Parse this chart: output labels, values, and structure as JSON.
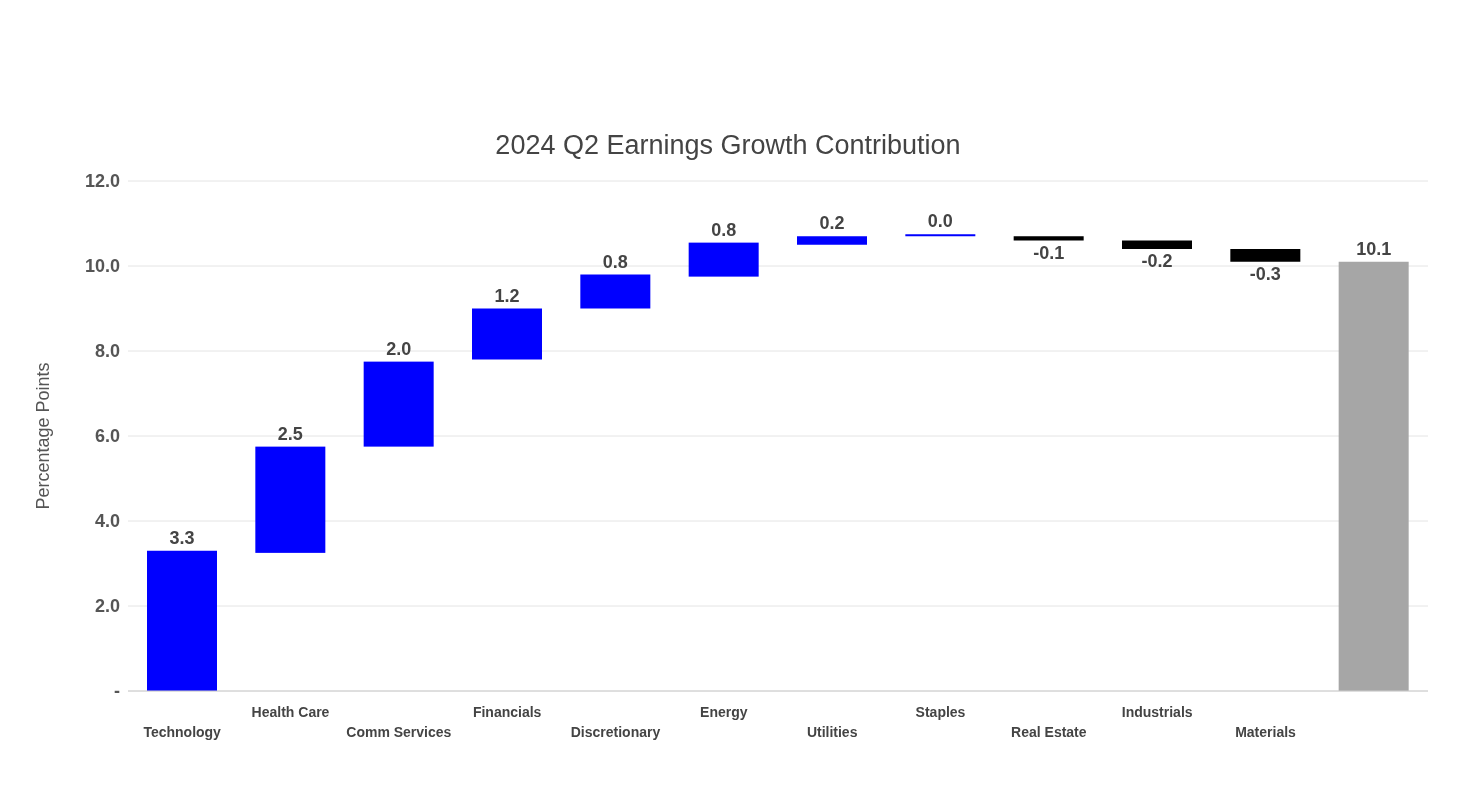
{
  "chart_data": {
    "type": "bar",
    "title": "2024 Q2 Earnings Growth Contribution",
    "ylabel": "Percentage Points",
    "categories": [
      "Technology",
      "Health Care",
      "Comm Services",
      "Financials",
      "Discretionary",
      "Energy",
      "Utilities",
      "Staples",
      "Real Estate",
      "Industrials",
      "Materials",
      null
    ],
    "base": [
      0,
      3.25,
      5.75,
      7.8,
      9.0,
      9.75,
      10.5,
      10.7,
      10.7,
      10.6,
      10.4,
      0
    ],
    "values": [
      3.3,
      2.5,
      2.0,
      1.2,
      0.8,
      0.8,
      0.2,
      0.0,
      -0.1,
      -0.2,
      -0.3,
      10.1
    ],
    "value_labels": [
      "3.3",
      "2.5",
      "2.0",
      "1.2",
      "0.8",
      "0.8",
      "0.2",
      "0.0",
      "-0.1",
      "-0.2",
      "-0.3",
      "10.1"
    ],
    "colors": [
      "#0000ff",
      "#0000ff",
      "#0000ff",
      "#0000ff",
      "#0000ff",
      "#0000ff",
      "#0000ff",
      "#0000ff",
      "#000000",
      "#000000",
      "#000000",
      "#a6a6a6"
    ],
    "ylim": [
      0,
      12
    ],
    "yticks": [
      {
        "value": 0,
        "label": "-"
      },
      {
        "value": 2,
        "label": "2.0"
      },
      {
        "value": 4,
        "label": "4.0"
      },
      {
        "value": 6,
        "label": "6.0"
      },
      {
        "value": 8,
        "label": "8.0"
      },
      {
        "value": 10,
        "label": "10.0"
      },
      {
        "value": 12,
        "label": "12.0"
      }
    ],
    "grid": "y"
  }
}
